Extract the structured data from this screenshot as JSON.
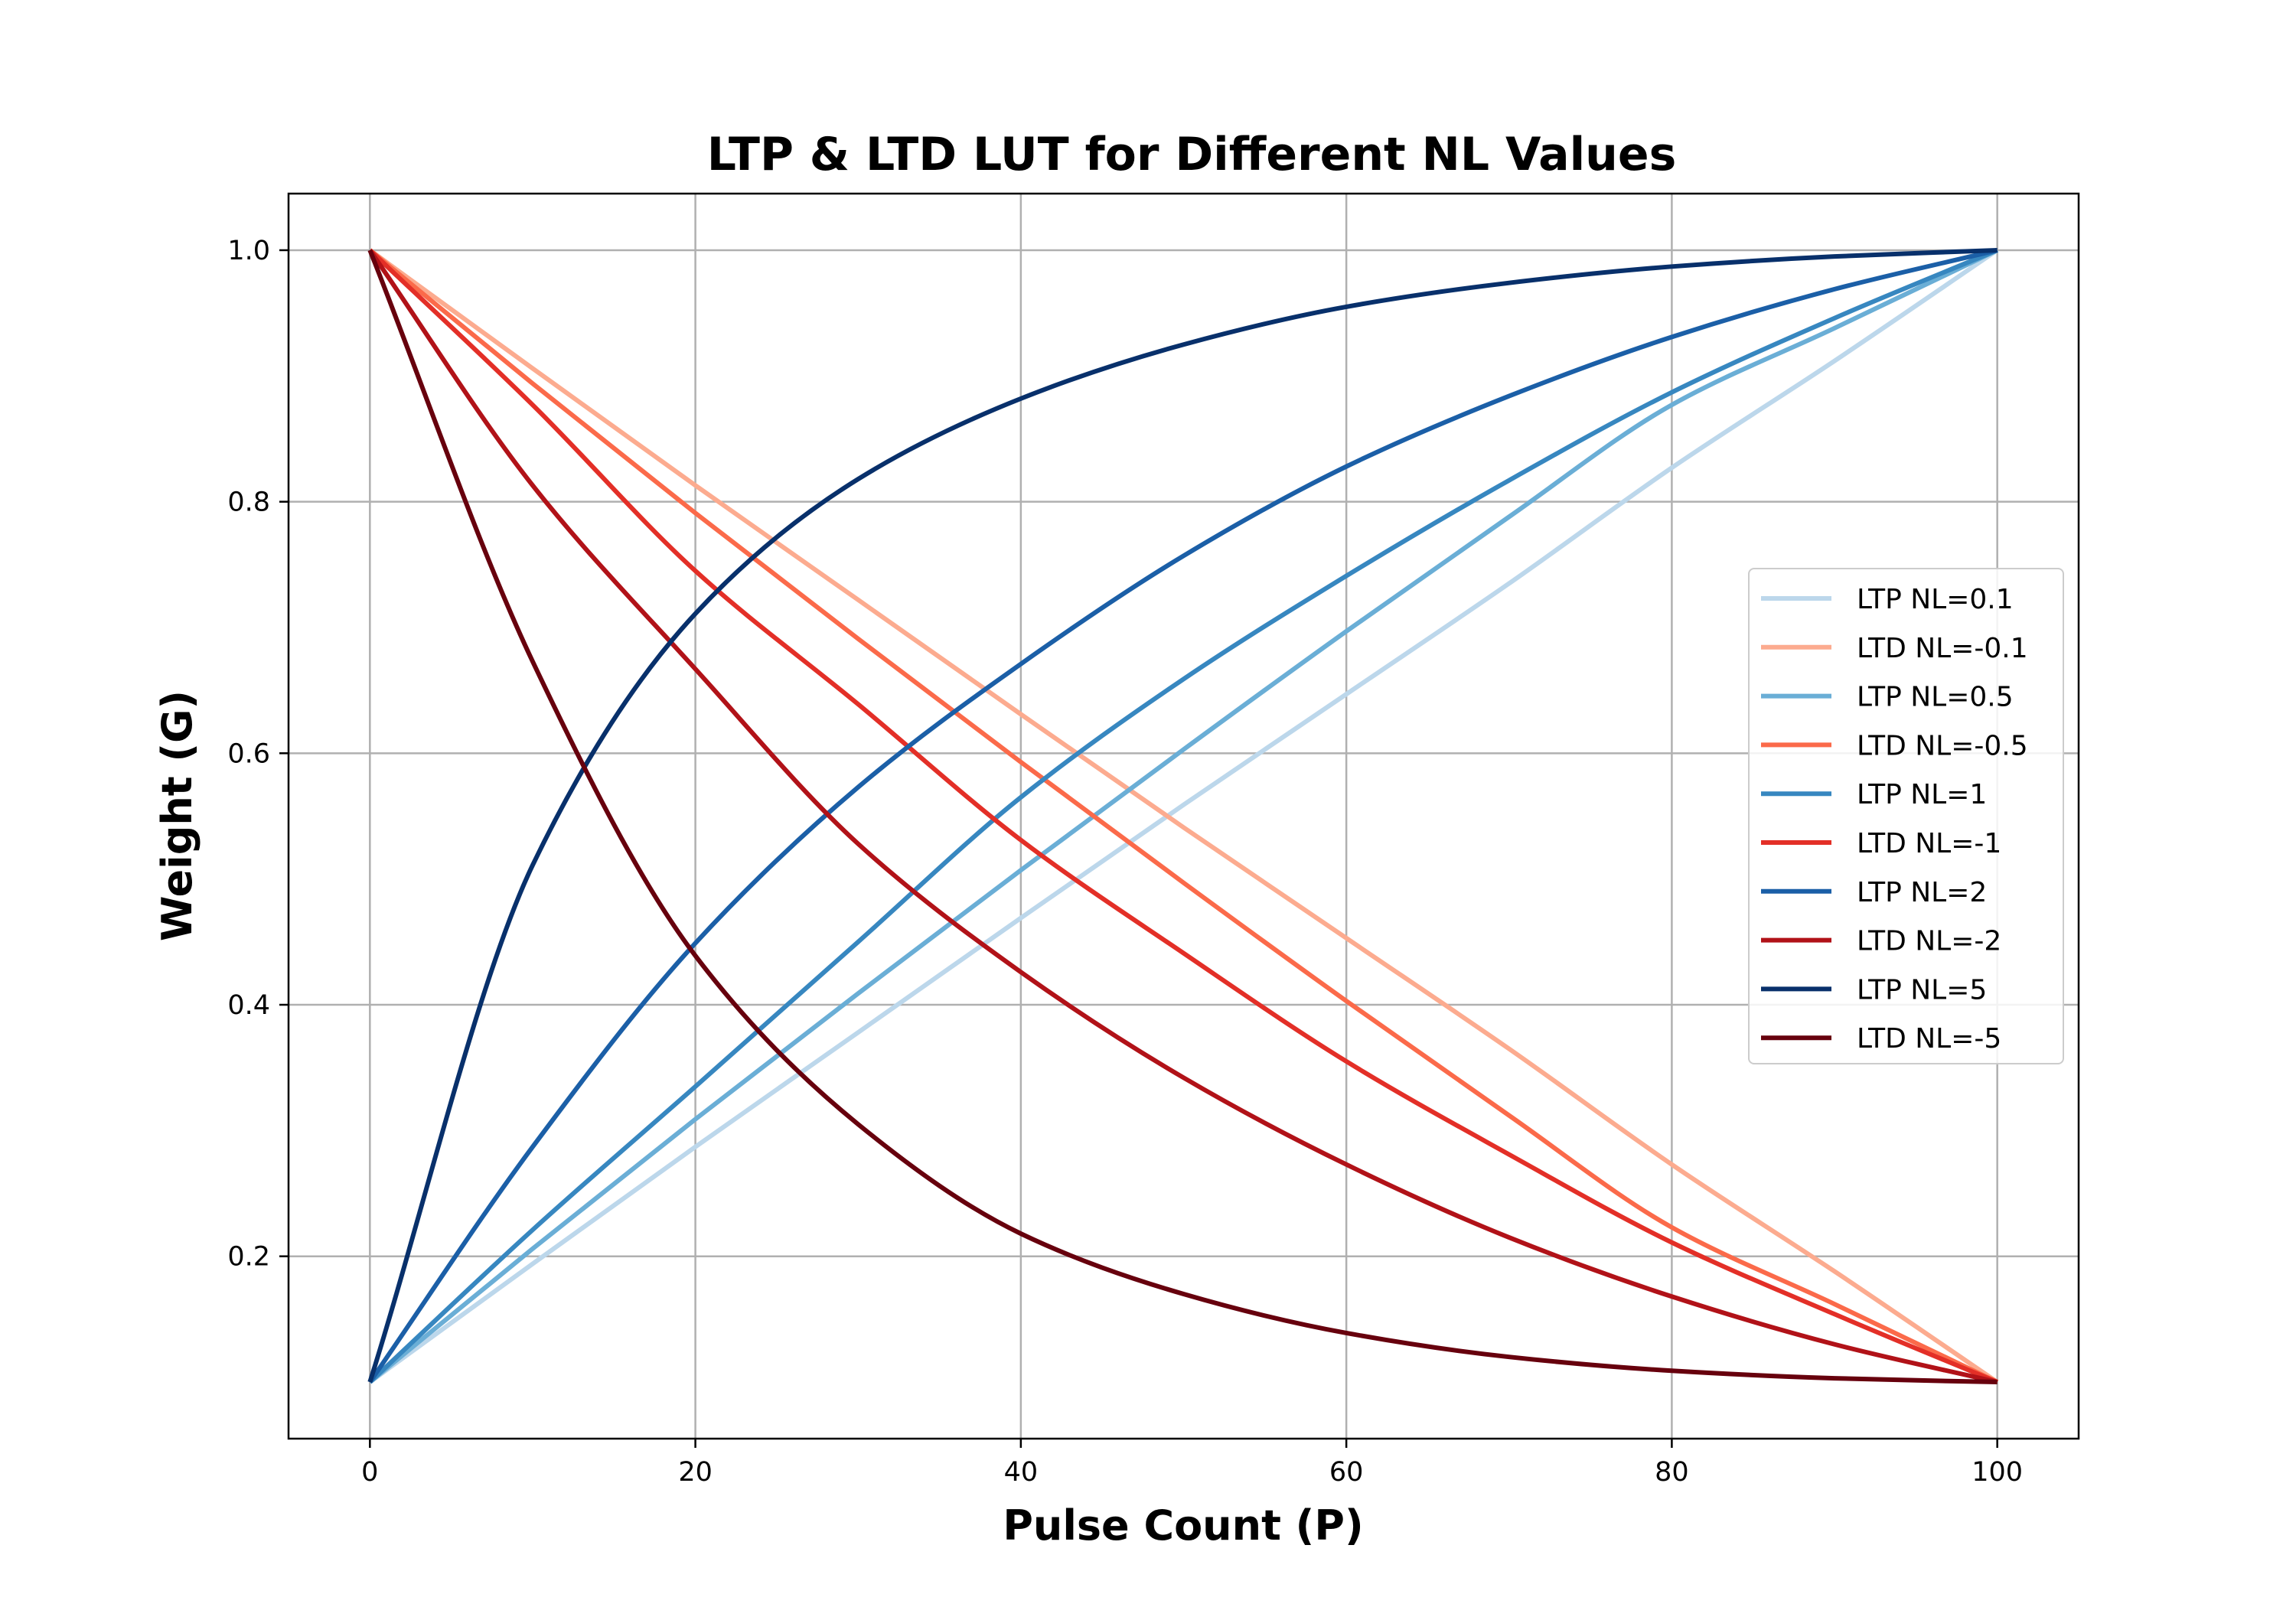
{
  "chart_data": {
    "type": "line",
    "title": "LTP & LTD LUT for Different NL Values",
    "xlabel": "Pulse Count (P)",
    "ylabel": "Weight (G)",
    "xlim": [
      -5,
      105
    ],
    "ylim": [
      0.055,
      1.045
    ],
    "x_ticks": [
      0,
      20,
      40,
      60,
      80,
      100
    ],
    "x_tick_labels": [
      "0",
      "20",
      "40",
      "60",
      "80",
      "100"
    ],
    "y_ticks": [
      0.2,
      0.4,
      0.6,
      0.8,
      1.0
    ],
    "y_tick_labels": [
      "0.2",
      "0.4",
      "0.6",
      "0.8",
      "1.0"
    ],
    "grid": true,
    "legend_position": "center-right",
    "x": [
      0,
      10,
      20,
      30,
      40,
      50,
      60,
      70,
      80,
      90,
      100
    ],
    "series": [
      {
        "name": "LTP NL=0.1",
        "color": "#bcd7eb",
        "values": [
          0.1,
          0.194,
          0.287,
          0.378,
          0.469,
          0.559,
          0.647,
          0.735,
          0.827,
          0.912,
          1.0
        ]
      },
      {
        "name": "LTD NL=-0.1",
        "color": "#fcab8f",
        "values": [
          1.0,
          0.906,
          0.813,
          0.722,
          0.631,
          0.541,
          0.453,
          0.365,
          0.273,
          0.188,
          0.1
        ]
      },
      {
        "name": "LTP NL=0.5",
        "color": "#6aaed6",
        "values": [
          0.1,
          0.206,
          0.309,
          0.409,
          0.507,
          0.603,
          0.697,
          0.788,
          0.877,
          0.938,
          1.0
        ]
      },
      {
        "name": "LTD NL=-0.5",
        "color": "#fb6a4a",
        "values": [
          1.0,
          0.894,
          0.791,
          0.691,
          0.593,
          0.497,
          0.403,
          0.312,
          0.223,
          0.162,
          0.1
        ]
      },
      {
        "name": "LTP NL=1",
        "color": "#3787c0",
        "values": [
          0.1,
          0.221,
          0.335,
          0.45,
          0.565,
          0.659,
          0.741,
          0.817,
          0.887,
          0.946,
          1.0
        ]
      },
      {
        "name": "LTD NL=-1",
        "color": "#e32f27",
        "values": [
          1.0,
          0.877,
          0.745,
          0.639,
          0.531,
          0.441,
          0.355,
          0.281,
          0.211,
          0.154,
          0.1
        ]
      },
      {
        "name": "LTP NL=2",
        "color": "#1b5fa7",
        "values": [
          0.1,
          0.287,
          0.449,
          0.573,
          0.671,
          0.757,
          0.828,
          0.884,
          0.931,
          0.969,
          1.0
        ]
      },
      {
        "name": "LTD NL=-2",
        "color": "#b11218",
        "values": [
          1.0,
          0.813,
          0.667,
          0.528,
          0.426,
          0.342,
          0.273,
          0.215,
          0.168,
          0.13,
          0.1
        ]
      },
      {
        "name": "LTP NL=5",
        "color": "#08306b",
        "values": [
          0.1,
          0.511,
          0.711,
          0.818,
          0.882,
          0.925,
          0.955,
          0.974,
          0.987,
          0.995,
          1.0
        ]
      },
      {
        "name": "LTD NL=-5",
        "color": "#67000d",
        "values": [
          1.0,
          0.673,
          0.439,
          0.305,
          0.218,
          0.17,
          0.139,
          0.12,
          0.109,
          0.103,
          0.1
        ]
      }
    ]
  }
}
